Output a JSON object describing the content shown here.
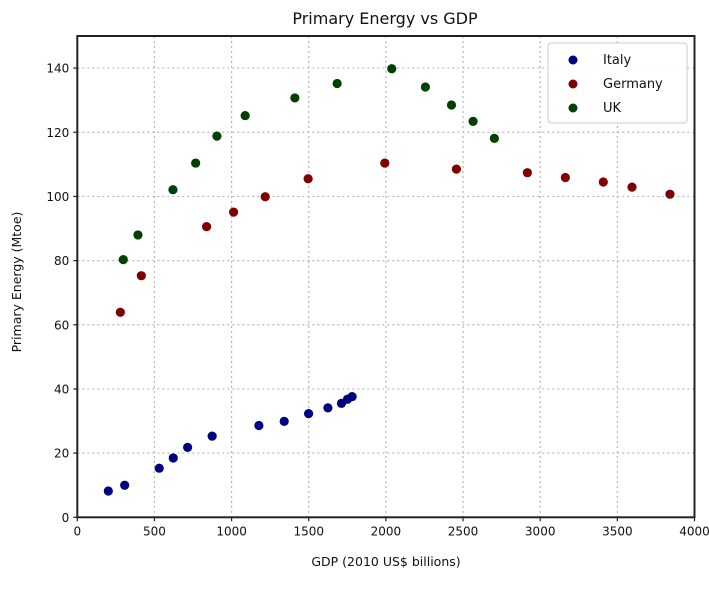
{
  "chart_data": {
    "type": "scatter",
    "title": "Primary Energy vs GDP",
    "xlabel": "GDP (2010 US$ billions)",
    "ylabel": "Primary Energy (Mtoe)",
    "xlim": [
      0,
      4000
    ],
    "ylim": [
      0,
      150
    ],
    "xticks": [
      0,
      500,
      1000,
      1500,
      2000,
      2500,
      3000,
      3500,
      4000
    ],
    "xtick_labels": [
      "0",
      "500",
      "1000",
      "1500",
      "2000",
      "2500",
      "3000",
      "3500",
      "4000"
    ],
    "yticks": [
      0,
      20,
      40,
      60,
      80,
      100,
      120,
      140
    ],
    "ytick_labels": [
      "0",
      "20",
      "40",
      "60",
      "80",
      "100",
      "120",
      "140"
    ],
    "grid": true,
    "legend_position": "top-right",
    "series": [
      {
        "name": "Italy",
        "color": "#000080",
        "x": [
          201,
          307,
          531,
          622,
          715,
          874,
          1177,
          1341,
          1499,
          1624,
          1712,
          1751,
          1781
        ],
        "y": [
          8.2,
          10.0,
          15.3,
          18.5,
          21.8,
          25.3,
          28.6,
          29.9,
          32.3,
          34.1,
          35.5,
          36.8,
          37.6
        ]
      },
      {
        "name": "Germany",
        "color": "#800000",
        "x": [
          279,
          415,
          838,
          1013,
          1218,
          1496,
          1993,
          2457,
          2917,
          3163,
          3409,
          3595,
          3841
        ],
        "y": [
          63.9,
          75.3,
          90.6,
          95.1,
          99.9,
          105.5,
          110.4,
          108.5,
          107.4,
          105.9,
          104.5,
          102.9,
          100.7
        ]
      },
      {
        "name": "UK",
        "color": "#004000",
        "x": [
          298,
          393,
          620,
          767,
          905,
          1088,
          1410,
          1684,
          2038,
          2256,
          2425,
          2565,
          2703
        ],
        "y": [
          80.3,
          88.0,
          102.1,
          110.4,
          118.8,
          125.2,
          130.7,
          135.2,
          139.8,
          134.1,
          128.5,
          123.4,
          118.1
        ]
      }
    ]
  }
}
